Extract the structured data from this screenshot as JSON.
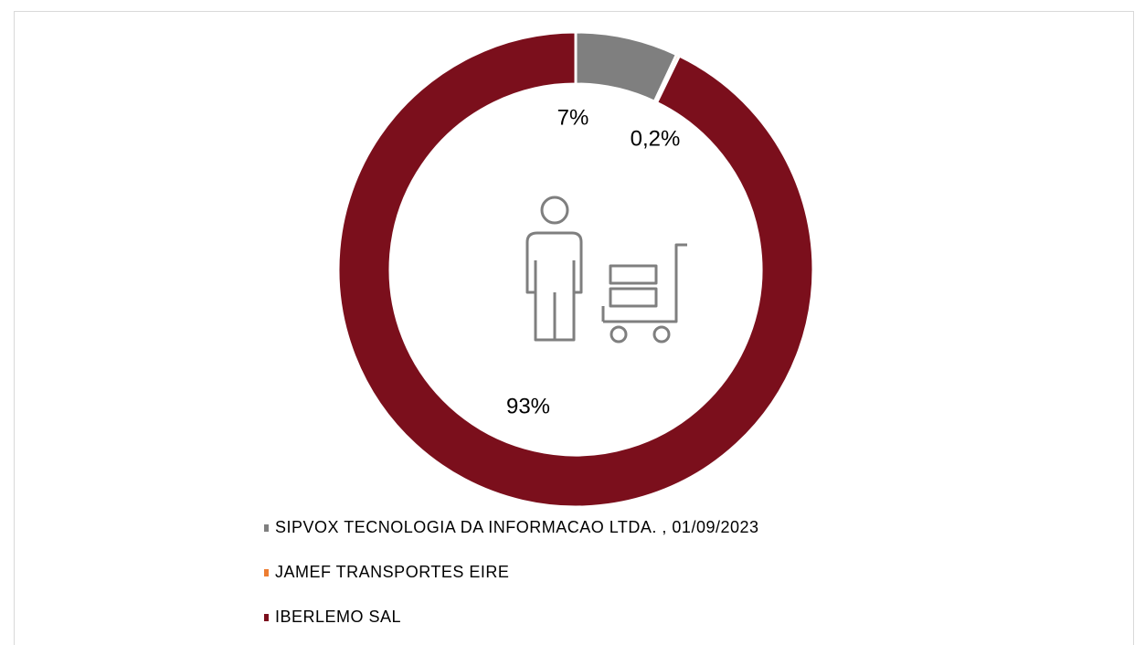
{
  "chart_data": {
    "type": "donut",
    "categories": [
      "SIPVOX TECNOLOGIA DA INFORMACAO LTDA. , 01/09/2023",
      "JAMEF TRANSPORTES EIRE",
      "IBERLEMO SAL"
    ],
    "values": [
      7,
      0.2,
      93
    ],
    "value_labels": [
      "7%",
      "0,2%",
      "93%"
    ],
    "colors": [
      "#7f7f7f",
      "#ed7d31",
      "#7b0f1c"
    ],
    "legend": "bottom"
  }
}
